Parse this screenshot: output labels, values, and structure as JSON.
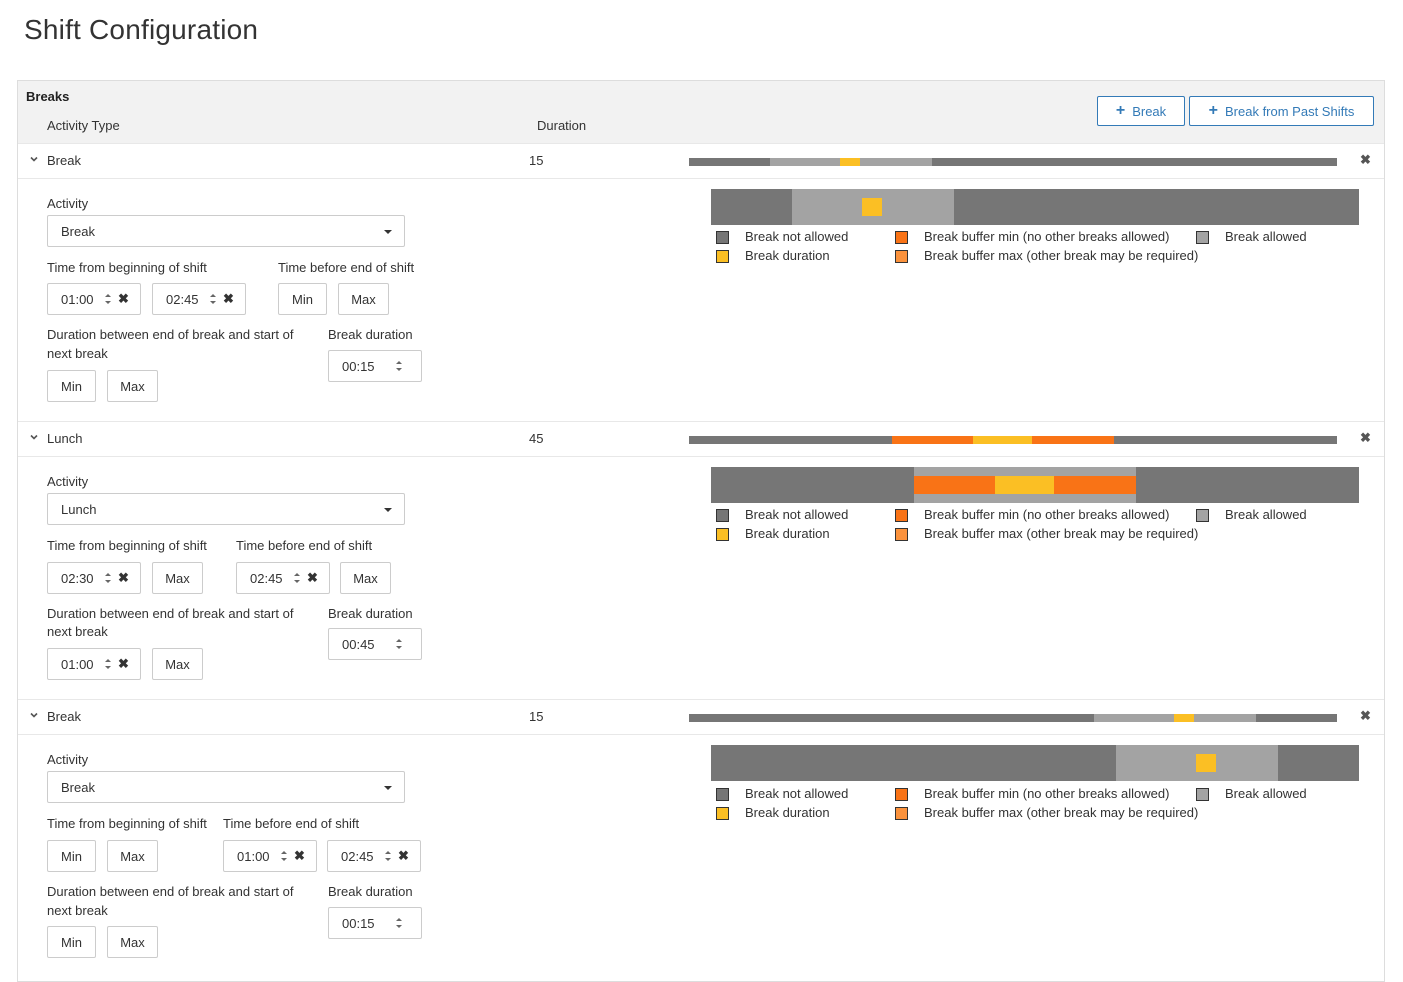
{
  "page": {
    "title": "Shift Configuration"
  },
  "panel": {
    "title": "Breaks",
    "columns": {
      "activity_type": "Activity Type",
      "duration": "Duration"
    },
    "buttons": {
      "add_break": "Break",
      "add_break_past": "Break from Past Shifts"
    }
  },
  "legend": {
    "not_allowed": "Break not allowed",
    "buffer_min": "Break buffer min (no other breaks allowed)",
    "allowed": "Break allowed",
    "duration": "Break duration",
    "buffer_max": "Break buffer max (other break may be required)"
  },
  "labels": {
    "activity": "Activity",
    "time_from_beginning": "Time from beginning of shift",
    "time_before_end": "Time before end of shift",
    "duration_between_1": "Duration between end of break and start of",
    "duration_between_2": "next break",
    "break_duration": "Break duration",
    "min": "Min",
    "max": "Max"
  },
  "colors": {
    "not_allowed": "#767676",
    "allowed": "#a3a3a3",
    "duration": "#fbbf24",
    "buffer_min": "#f97316",
    "buffer_max": "#fb923c",
    "accent": "#337ab7"
  },
  "breaks": [
    {
      "name": "Break",
      "duration": "15",
      "activity": "Break",
      "from_beginning_min": "01:00",
      "from_beginning_max": "02:45",
      "before_end_min": "",
      "before_end_max": "",
      "between_min": "",
      "between_max": "",
      "break_duration": "00:15",
      "timeline": {
        "allowed_start": 0.125,
        "allowed_end": 0.375,
        "duration_start": 0.233,
        "duration_end": 0.264,
        "buffer_min_start": null,
        "buffer_min_end": null
      }
    },
    {
      "name": "Lunch",
      "duration": "45",
      "activity": "Lunch",
      "from_beginning_min": "02:30",
      "from_beginning_max": "",
      "before_end_min": "02:45",
      "before_end_max": "",
      "between_min": "01:00",
      "between_max": "",
      "break_duration": "00:45",
      "timeline": {
        "allowed_start": 0.3125,
        "allowed_end": 0.656,
        "duration_start": 0.4375,
        "duration_end": 0.53,
        "buffer_min_start": 0.3125,
        "buffer_min_end": 0.656
      }
    },
    {
      "name": "Break",
      "duration": "15",
      "activity": "Break",
      "from_beginning_min": "",
      "from_beginning_max": "",
      "before_end_min": "01:00",
      "before_end_max": "02:45",
      "between_min": "",
      "between_max": "",
      "break_duration": "00:15",
      "timeline": {
        "allowed_start": 0.625,
        "allowed_end": 0.875,
        "duration_start": 0.748,
        "duration_end": 0.779,
        "buffer_min_start": null,
        "buffer_min_end": null
      }
    }
  ]
}
